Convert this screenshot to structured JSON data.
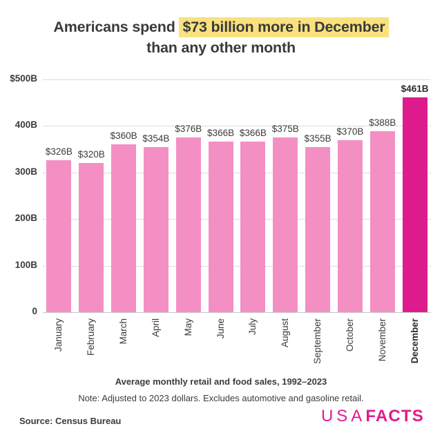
{
  "title": {
    "prefix": "Americans spend ",
    "highlight": "$73 billion more in December",
    "line2": "than any other month",
    "highlight_color": "#F9E27E",
    "text_color": "#3A3A3A"
  },
  "chart_data": {
    "type": "bar",
    "categories": [
      "January",
      "February",
      "March",
      "April",
      "May",
      "June",
      "July",
      "August",
      "September",
      "October",
      "November",
      "December"
    ],
    "values": [
      326,
      320,
      360,
      354,
      376,
      366,
      366,
      375,
      355,
      370,
      388,
      461
    ],
    "labels": [
      "$326B",
      "$320B",
      "$360B",
      "$354B",
      "$376B",
      "$366B",
      "$366B",
      "$375B",
      "$355B",
      "$370B",
      "$388B",
      "$461B"
    ],
    "title": "",
    "xlabel": "",
    "ylabel": "",
    "ylim": [
      0,
      500
    ],
    "yticks": [
      {
        "value": 0,
        "label": "0"
      },
      {
        "value": 100,
        "label": "100B"
      },
      {
        "value": 200,
        "label": "200B"
      },
      {
        "value": 300,
        "label": "300B"
      },
      {
        "value": 400,
        "label": "400B"
      },
      {
        "value": 500,
        "label": "$500B"
      }
    ],
    "grid": true,
    "legend": "none",
    "highlight_category": "December",
    "bar_color": "#F48FC4",
    "highlight_bar_color": "#DE1B8D",
    "grid_color": "#DBDBDB",
    "axis_line_color": "#C6C6C6"
  },
  "footer": {
    "caption": "Average monthly retail and food sales, 1992–2023",
    "note": "Note: Adjusted to 2023 dollars. Excludes automotive and gasoline retail.",
    "source": "Source: Census Bureau",
    "logo": {
      "usa": "USA",
      "facts": "FACTS",
      "color": "#DE1B8D"
    }
  }
}
